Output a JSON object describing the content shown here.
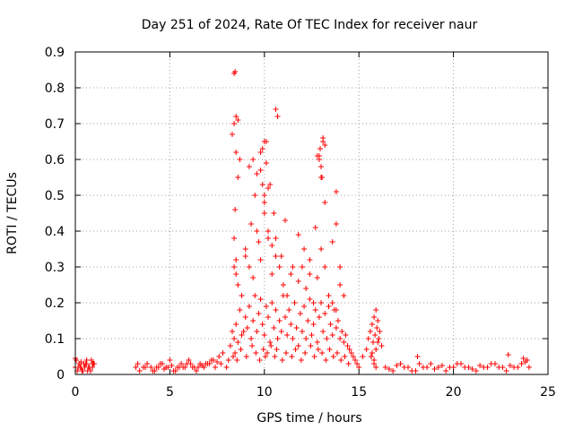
{
  "chart_data": {
    "type": "scatter",
    "title": "Day 251 of 2024, Rate Of TEC Index for receiver naur",
    "xlabel": "GPS time / hours",
    "ylabel": "ROTI / TECUs",
    "xlim": [
      0,
      25
    ],
    "ylim": [
      0,
      0.9
    ],
    "x_ticks": [
      "0",
      "5",
      "10",
      "15",
      "20",
      "25"
    ],
    "y_ticks": [
      "0",
      "0.1",
      "0.2",
      "0.3",
      "0.4",
      "0.5",
      "0.6",
      "0.7",
      "0.8",
      "0.9"
    ],
    "grid": true,
    "marker": "+",
    "color": "#ff0000",
    "series": [
      {
        "x": [
          0.0,
          0.1,
          0.2,
          0.3,
          0.4,
          0.5,
          0.6,
          0.7,
          0.8,
          0.9,
          1.0,
          0.05,
          0.25,
          0.45,
          0.65,
          0.85,
          0.15,
          0.35,
          0.55,
          0.75,
          0.95,
          0.0,
          0.3,
          0.6,
          0.9,
          3.2,
          3.4,
          3.6,
          3.8,
          4.0,
          4.2,
          4.4,
          4.6,
          4.8,
          5.0,
          5.2,
          5.4,
          5.6,
          5.8,
          6.0,
          6.2,
          6.4,
          6.6,
          6.8,
          7.0,
          7.2,
          7.4,
          7.6,
          7.8,
          3.3,
          3.7,
          4.1,
          4.5,
          4.9,
          5.3,
          5.7,
          6.1,
          6.5,
          6.9,
          7.3,
          7.7,
          4.3,
          4.7,
          5.1,
          5.5,
          5.9,
          6.3,
          6.7,
          7.1,
          7.5,
          8.0,
          8.1,
          8.2,
          8.3,
          8.4,
          8.5,
          8.6,
          8.7,
          8.8,
          8.9,
          9.0,
          9.1,
          9.2,
          9.3,
          9.4,
          9.5,
          9.6,
          9.7,
          9.8,
          9.9,
          10.0,
          10.1,
          10.2,
          10.3,
          10.4,
          10.5,
          10.6,
          10.7,
          10.8,
          10.9,
          11.0,
          11.1,
          11.2,
          11.3,
          11.4,
          11.5,
          11.6,
          11.7,
          11.8,
          11.9,
          12.0,
          12.1,
          12.2,
          12.3,
          12.4,
          12.5,
          12.6,
          12.7,
          12.8,
          12.9,
          13.0,
          13.1,
          13.2,
          13.3,
          13.4,
          13.5,
          13.6,
          13.7,
          13.8,
          13.9,
          14.0,
          14.1,
          14.2,
          14.3,
          14.4,
          14.5,
          14.6,
          14.7,
          14.8,
          14.9,
          8.4,
          8.5,
          8.6,
          8.8,
          9.0,
          9.2,
          9.4,
          9.6,
          9.8,
          10.0,
          10.2,
          10.4,
          10.6,
          10.8,
          11.0,
          11.2,
          11.4,
          11.6,
          11.8,
          12.0,
          12.2,
          12.4,
          12.6,
          12.8,
          13.0,
          13.2,
          13.4,
          13.6,
          13.8,
          14.0,
          8.35,
          8.45,
          8.55,
          8.75,
          9.05,
          9.35,
          9.55,
          9.75,
          9.95,
          10.05,
          10.15,
          10.35,
          10.55,
          10.65,
          10.95,
          11.15,
          11.45,
          11.65,
          11.95,
          12.15,
          12.45,
          12.65,
          12.85,
          13.05,
          13.25,
          13.45,
          13.65,
          13.85,
          14.05,
          14.25,
          14.45,
          8.4,
          8.45,
          8.5,
          8.6,
          8.7,
          9.0,
          9.3,
          9.5,
          9.7,
          9.9,
          10.0,
          10.1,
          10.2,
          10.4,
          10.5,
          10.6,
          10.9,
          11.1,
          11.5,
          11.8,
          12.1,
          12.4,
          12.7,
          12.9,
          13.0,
          13.1,
          13.2,
          13.6,
          13.8,
          14.0,
          14.2,
          8.3,
          8.4,
          8.5,
          9.8,
          9.9,
          10.0,
          10.1,
          10.2,
          10.6,
          10.7,
          12.9,
          13.0,
          13.1,
          13.2,
          8.4,
          8.45,
          8.5,
          8.6,
          9.2,
          9.4,
          9.6,
          9.8,
          10.0,
          10.3,
          12.8,
          12.95,
          13.05,
          13.8,
          15.0,
          15.2,
          15.4,
          15.5,
          15.6,
          15.7,
          15.8,
          15.9,
          16.0,
          16.1,
          16.2,
          15.65,
          15.75,
          15.85,
          15.95,
          16.05,
          15.7,
          15.8,
          15.9,
          16.0,
          15.8,
          15.9,
          16.4,
          16.8,
          17.2,
          17.6,
          18.0,
          18.4,
          18.8,
          19.2,
          19.6,
          20.0,
          20.4,
          20.8,
          21.2,
          21.6,
          22.0,
          22.4,
          22.8,
          23.2,
          23.6,
          24.0,
          16.6,
          17.0,
          17.4,
          17.8,
          18.2,
          18.6,
          19.0,
          19.4,
          19.8,
          20.2,
          20.6,
          21.0,
          21.4,
          21.8,
          22.2,
          22.6,
          23.0,
          23.4,
          23.8,
          18.1,
          22.9,
          23.7,
          23.9
        ],
        "y": [
          0.02,
          0.01,
          0.03,
          0.02,
          0.01,
          0.02,
          0.03,
          0.02,
          0.01,
          0.02,
          0.03,
          0.04,
          0.02,
          0.03,
          0.01,
          0.04,
          0.02,
          0.01,
          0.03,
          0.02,
          0.03,
          0.045,
          0.035,
          0.04,
          0.03,
          0.02,
          0.01,
          0.02,
          0.03,
          0.02,
          0.01,
          0.02,
          0.03,
          0.02,
          0.04,
          0.01,
          0.02,
          0.03,
          0.02,
          0.04,
          0.02,
          0.01,
          0.03,
          0.02,
          0.03,
          0.04,
          0.02,
          0.05,
          0.06,
          0.03,
          0.02,
          0.01,
          0.03,
          0.02,
          0.01,
          0.02,
          0.03,
          0.02,
          0.03,
          0.04,
          0.03,
          0.02,
          0.015,
          0.025,
          0.02,
          0.03,
          0.02,
          0.025,
          0.03,
          0.035,
          0.02,
          0.04,
          0.08,
          0.12,
          0.1,
          0.14,
          0.09,
          0.18,
          0.11,
          0.12,
          0.16,
          0.13,
          0.19,
          0.1,
          0.15,
          0.22,
          0.12,
          0.17,
          0.21,
          0.14,
          0.11,
          0.19,
          0.16,
          0.09,
          0.2,
          0.13,
          0.18,
          0.1,
          0.15,
          0.12,
          0.22,
          0.16,
          0.11,
          0.18,
          0.14,
          0.1,
          0.2,
          0.13,
          0.08,
          0.17,
          0.12,
          0.19,
          0.1,
          0.15,
          0.21,
          0.11,
          0.14,
          0.18,
          0.09,
          0.16,
          0.2,
          0.12,
          0.17,
          0.1,
          0.19,
          0.14,
          0.11,
          0.18,
          0.13,
          0.15,
          0.1,
          0.12,
          0.09,
          0.11,
          0.08,
          0.07,
          0.06,
          0.05,
          0.04,
          0.03,
          0.3,
          0.28,
          0.25,
          0.22,
          0.35,
          0.3,
          0.27,
          0.4,
          0.32,
          0.45,
          0.38,
          0.28,
          0.33,
          0.3,
          0.25,
          0.22,
          0.28,
          0.2,
          0.26,
          0.3,
          0.24,
          0.32,
          0.2,
          0.27,
          0.35,
          0.3,
          0.22,
          0.2,
          0.18,
          0.25,
          0.05,
          0.06,
          0.04,
          0.07,
          0.05,
          0.08,
          0.06,
          0.04,
          0.07,
          0.05,
          0.06,
          0.08,
          0.05,
          0.07,
          0.04,
          0.06,
          0.05,
          0.07,
          0.04,
          0.06,
          0.08,
          0.05,
          0.07,
          0.06,
          0.04,
          0.07,
          0.05,
          0.06,
          0.04,
          0.05,
          0.03,
          0.38,
          0.46,
          0.32,
          0.55,
          0.6,
          0.33,
          0.42,
          0.5,
          0.37,
          0.53,
          0.48,
          0.65,
          0.4,
          0.36,
          0.45,
          0.38,
          0.33,
          0.43,
          0.3,
          0.39,
          0.35,
          0.28,
          0.41,
          0.6,
          0.55,
          0.65,
          0.48,
          0.37,
          0.42,
          0.3,
          0.22,
          0.67,
          0.7,
          0.62,
          0.57,
          0.63,
          0.65,
          0.59,
          0.52,
          0.74,
          0.72,
          0.61,
          0.58,
          0.66,
          0.64,
          0.84,
          0.845,
          0.72,
          0.71,
          0.58,
          0.6,
          0.56,
          0.62,
          0.5,
          0.53,
          0.61,
          0.63,
          0.55,
          0.51,
          0.02,
          0.05,
          0.07,
          0.1,
          0.12,
          0.14,
          0.16,
          0.18,
          0.15,
          0.12,
          0.08,
          0.05,
          0.09,
          0.11,
          0.13,
          0.1,
          0.06,
          0.04,
          0.07,
          0.09,
          0.03,
          0.02,
          0.02,
          0.01,
          0.03,
          0.02,
          0.01,
          0.02,
          0.03,
          0.02,
          0.01,
          0.02,
          0.03,
          0.02,
          0.01,
          0.02,
          0.03,
          0.02,
          0.01,
          0.02,
          0.03,
          0.02,
          0.015,
          0.025,
          0.02,
          0.01,
          0.03,
          0.02,
          0.015,
          0.025,
          0.02,
          0.03,
          0.02,
          0.015,
          0.025,
          0.02,
          0.03,
          0.02,
          0.025,
          0.02,
          0.035,
          0.05,
          0.055,
          0.045,
          0.04
        ]
      }
    ]
  }
}
